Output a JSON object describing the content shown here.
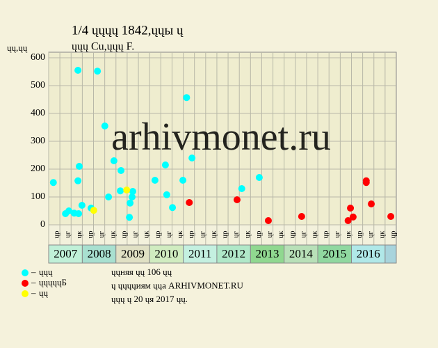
{
  "chart_data": {
    "type": "scatter",
    "title": "1/4 ųųųų 1842,ųųы ų",
    "subtitle": "ųųų Cu,ųųų F.",
    "y_label": "ųų,ųų",
    "watermark": "arhivmonet.ru",
    "xlim": [
      2007,
      2017.333
    ],
    "xticks": [
      {
        "value": 2007,
        "label": "ųр"
      },
      {
        "value": 2007.333,
        "label": "ųг"
      },
      {
        "value": 2007.667,
        "label": "ųк"
      },
      {
        "value": 2008,
        "label": "ųр"
      },
      {
        "value": 2008.333,
        "label": "ųг"
      },
      {
        "value": 2008.667,
        "label": "ųк"
      },
      {
        "value": 2009,
        "label": "ųр"
      },
      {
        "value": 2009.333,
        "label": "ųг"
      },
      {
        "value": 2009.667,
        "label": "ųк"
      },
      {
        "value": 2010,
        "label": "ųр"
      },
      {
        "value": 2010.333,
        "label": "ųг"
      },
      {
        "value": 2010.667,
        "label": "ųк"
      },
      {
        "value": 2011,
        "label": "ųр"
      },
      {
        "value": 2011.333,
        "label": "ųг"
      },
      {
        "value": 2011.667,
        "label": "ųк"
      },
      {
        "value": 2012,
        "label": "ųр"
      },
      {
        "value": 2012.333,
        "label": "ųг"
      },
      {
        "value": 2012.667,
        "label": "ųк"
      },
      {
        "value": 2013,
        "label": "ųр"
      },
      {
        "value": 2013.333,
        "label": "ųг"
      },
      {
        "value": 2013.667,
        "label": "ųк"
      },
      {
        "value": 2014,
        "label": "ųр"
      },
      {
        "value": 2014.333,
        "label": "ųг"
      },
      {
        "value": 2014.667,
        "label": "ųк"
      },
      {
        "value": 2015,
        "label": "ųр"
      },
      {
        "value": 2015.333,
        "label": "ųг"
      },
      {
        "value": 2015.667,
        "label": "ųк"
      },
      {
        "value": 2016,
        "label": "ųр"
      },
      {
        "value": 2016.333,
        "label": "ųг"
      },
      {
        "value": 2016.667,
        "label": "ųк"
      },
      {
        "value": 2017,
        "label": "ųр"
      }
    ],
    "years": [
      2007,
      2008,
      2009,
      2010,
      2011,
      2012,
      2013,
      2014,
      2015,
      2016
    ],
    "ylim": [
      0,
      600
    ],
    "yticks": [
      0,
      100,
      200,
      300,
      400,
      500,
      600
    ],
    "grid": true,
    "series": [
      {
        "name": "ųųų",
        "color": "#00ffff",
        "x": [
          2007.14,
          2007.5,
          2007.6,
          2007.76,
          2007.89,
          2007.87,
          2007.87,
          2007.91,
          2007.99,
          2008.26,
          2008.45,
          2008.67,
          2008.78,
          2008.94,
          2009.15,
          2009.13,
          2009.4,
          2009.42,
          2009.48,
          2009.5,
          2010.16,
          2010.47,
          2010.51,
          2010.68,
          2010.99,
          2011.1,
          2011.26,
          2012.74,
          2013.26
        ],
        "values": [
          152,
          40,
          50,
          42,
          40,
          555,
          158,
          210,
          70,
          60,
          552,
          355,
          100,
          230,
          195,
          122,
          27,
          78,
          100,
          120,
          160,
          215,
          108,
          62,
          160,
          457,
          240,
          130,
          170
        ]
      },
      {
        "name": "ųųųųųБ",
        "color": "#ff0000",
        "x": [
          2011.18,
          2012.6,
          2013.53,
          2014.52,
          2015.9,
          2015.97,
          2016.05,
          2016.44,
          2016.44,
          2016.59,
          2017.17
        ],
        "values": [
          80,
          90,
          15,
          30,
          15,
          60,
          28,
          158,
          152,
          75,
          30
        ]
      },
      {
        "name": "ųų",
        "color": "#ffff00",
        "x": [
          2009.32,
          2008.34
        ],
        "values": [
          125,
          52
        ]
      }
    ],
    "notes": [
      "ųųняя ųų 106 ųų",
      "ų ųųųųиям ųųа ARHIVMONET.RU",
      "ųųų ų 20 ųя 2017 ųų."
    ]
  }
}
